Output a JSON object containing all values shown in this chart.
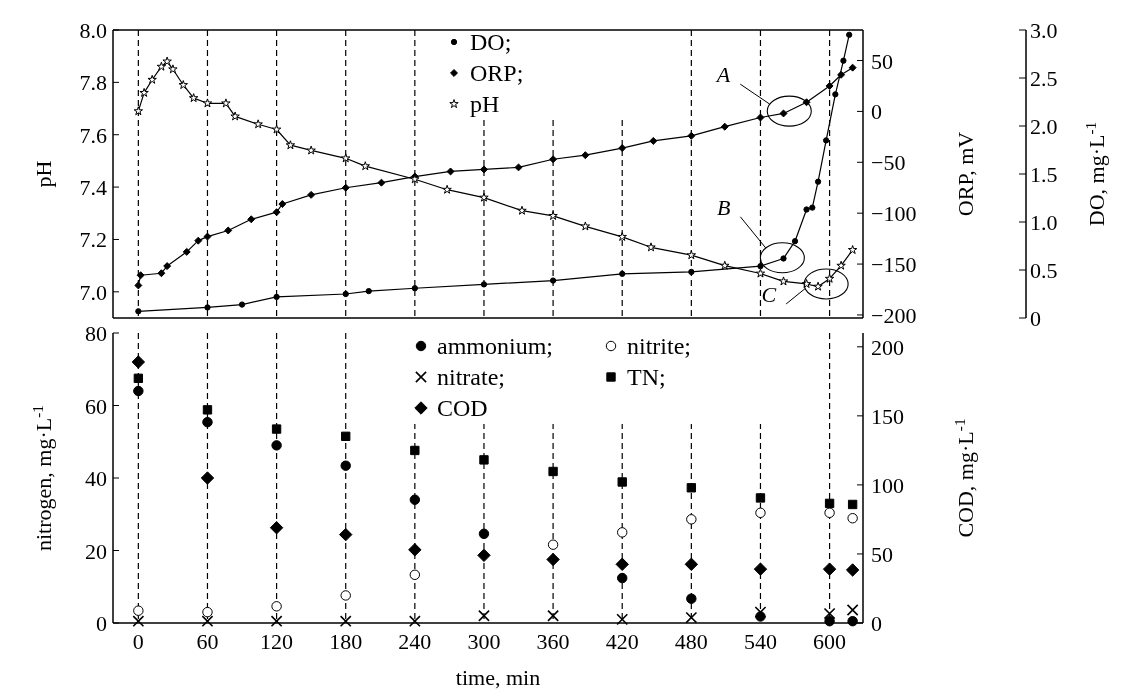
{
  "chart_data": [
    {
      "type": "line",
      "xlim": [
        -22,
        629
      ],
      "xticks": [
        0,
        60,
        120,
        180,
        240,
        300,
        360,
        420,
        480,
        540,
        600
      ],
      "tick_labels": "y",
      "grid": "x",
      "legend": "top",
      "line_style": "solid",
      "ylabel": "pH",
      "ylim": [
        6.9,
        8.0
      ],
      "yticks": [
        {
          "value": 7,
          "label": "7.0"
        },
        7.2,
        7.4,
        7.6,
        7.8,
        {
          "value": 8,
          "label": "8.0"
        }
      ],
      "y2label": "ORP, mV",
      "y2lim": [
        -203,
        80
      ],
      "y2ticks": [
        {
          "value": -200,
          "label": "−200"
        },
        {
          "value": -150,
          "label": "−150"
        },
        {
          "value": -100,
          "label": "−100"
        },
        {
          "value": -50,
          "label": "−50"
        },
        0,
        50
      ],
      "y3label": "DO, mg·L$^{-1}$",
      "y3lim": [
        0,
        3
      ],
      "y3ticks": [
        0,
        0.5,
        {
          "value": 1,
          "label": "1.0"
        },
        1.5,
        {
          "value": 2,
          "label": "2.0"
        },
        2.5,
        {
          "value": 3,
          "label": "3.0"
        }
      ],
      "annotations": [
        {
          "text": "A",
          "x": 565,
          "y": 7.69
        },
        {
          "text": "B",
          "x": 559,
          "y": 7.13
        },
        {
          "text": "C",
          "x": 597,
          "y": 7.03
        }
      ],
      "series": [
        {
          "name": "DO;",
          "color": "#000000",
          "marker": "circle",
          "axis": "y3",
          "x": [
            0,
            60,
            90,
            120,
            180,
            200,
            240,
            300,
            360,
            420,
            480,
            540,
            560,
            570,
            580,
            585,
            590,
            597,
            605,
            612,
            617
          ],
          "values": [
            0.07,
            0.11,
            0.14,
            0.22,
            0.25,
            0.28,
            0.31,
            0.35,
            0.39,
            0.46,
            0.48,
            0.54,
            0.62,
            0.8,
            1.13,
            1.15,
            1.42,
            1.85,
            2.33,
            2.68,
            2.95
          ]
        },
        {
          "name": "ORP;",
          "color": "#000000",
          "marker": "diamond",
          "axis": "y2",
          "x": [
            0,
            2,
            20,
            25,
            42,
            52,
            60,
            78,
            98,
            120,
            125,
            150,
            180,
            211,
            240,
            271,
            300,
            330,
            360,
            388,
            420,
            447,
            480,
            509,
            540,
            560,
            580,
            600,
            610,
            620
          ],
          "values": [
            -171,
            -161,
            -159,
            -152,
            -138,
            -127,
            -123,
            -117,
            -106,
            -99,
            -91,
            -82,
            -75,
            -70,
            -64,
            -59,
            -57,
            -55,
            -47,
            -43,
            -36,
            -29,
            -24,
            -15,
            -6,
            -2,
            9,
            25,
            36,
            43
          ]
        },
        {
          "name": "pH",
          "color": "#ffffff",
          "marker": "star",
          "axis": "y",
          "x": [
            0,
            5,
            12,
            20,
            25,
            30,
            39,
            48,
            60,
            76,
            84,
            104,
            120,
            132,
            150,
            180,
            197,
            240,
            268,
            300,
            333,
            360,
            388,
            420,
            445,
            480,
            509,
            540,
            560,
            580,
            590,
            600,
            610,
            620
          ],
          "values": [
            7.69,
            7.76,
            7.81,
            7.86,
            7.88,
            7.85,
            7.79,
            7.74,
            7.72,
            7.72,
            7.67,
            7.64,
            7.62,
            7.56,
            7.54,
            7.51,
            7.48,
            7.43,
            7.39,
            7.36,
            7.31,
            7.29,
            7.25,
            7.21,
            7.17,
            7.14,
            7.1,
            7.07,
            7.04,
            7.03,
            7.02,
            7.05,
            7.1,
            7.16
          ]
        }
      ]
    },
    {
      "type": "scatter",
      "xlabel": "time, min",
      "xlim": [
        -22,
        629
      ],
      "xticks": [
        0,
        60,
        120,
        180,
        240,
        300,
        360,
        420,
        480,
        540,
        600
      ],
      "grid": "x",
      "legend": "top",
      "ylabel": "nitrogen, mg·L$^{-1}$",
      "ylim": [
        0,
        80
      ],
      "yticks": [
        0,
        20,
        40,
        60,
        80
      ],
      "y2label": "COD, mg·L$^{-1}$",
      "y2lim": [
        0,
        210
      ],
      "y2ticks": [
        0,
        50,
        100,
        150,
        200
      ],
      "x": [
        0,
        60,
        120,
        180,
        240,
        300,
        360,
        420,
        480,
        540,
        600,
        620
      ],
      "series": [
        {
          "name": "ammonium;",
          "color": "#000000",
          "marker": "circle",
          "axis": "y",
          "values": [
            64,
            55.4,
            49,
            43.4,
            34,
            24.6,
            null,
            12.4,
            6.7,
            1.8,
            0.5,
            0.5
          ]
        },
        {
          "name": "nitrite;",
          "color": "#ffffff",
          "marker": "circle",
          "axis": "y",
          "values": [
            3.4,
            3,
            4.6,
            7.6,
            13.3,
            null,
            21.6,
            25,
            28.6,
            30.4,
            30.4,
            28.9
          ]
        },
        {
          "name": "nitrate;",
          "color": "#000000",
          "marker": "cross",
          "axis": "y",
          "values": [
            0.5,
            0.5,
            0.5,
            0.5,
            0.5,
            2,
            2,
            1,
            1.5,
            3,
            2.6,
            3.6
          ]
        },
        {
          "name": "TN;",
          "color": "#000000",
          "marker": "square",
          "axis": "y",
          "values": [
            67.5,
            58.8,
            53.5,
            51.5,
            47.6,
            45,
            41.8,
            38.9,
            37.3,
            34.5,
            33,
            32.7
          ]
        },
        {
          "name": "COD",
          "color": "#000000",
          "marker": "diamond",
          "axis": "y2",
          "values": [
            189,
            105,
            69,
            64,
            53,
            49,
            46,
            42.5,
            42.5,
            39,
            39,
            38.4
          ]
        }
      ]
    }
  ]
}
